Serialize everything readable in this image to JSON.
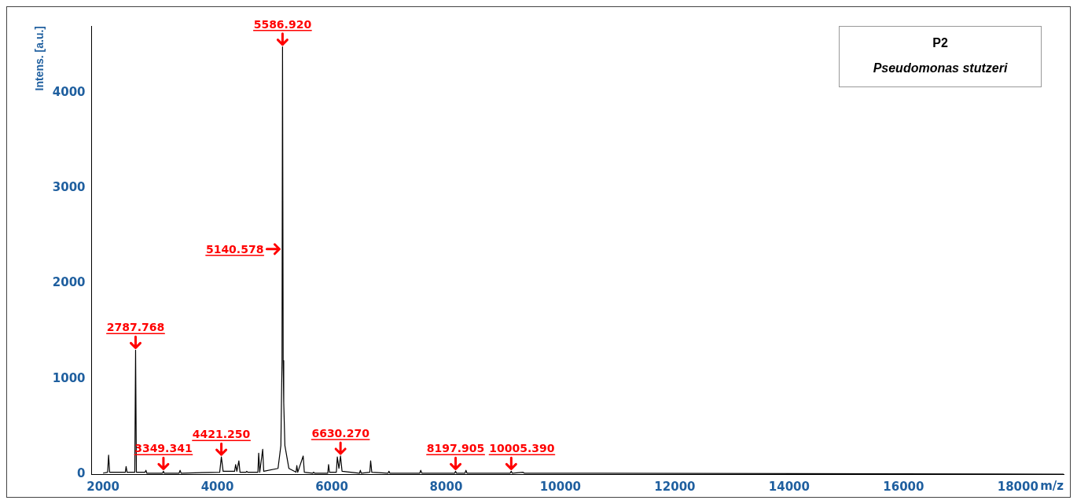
{
  "chart_data": {
    "type": "line",
    "xlabel": "m/z",
    "ylabel": "Intens. [a.u.]",
    "x": [
      2000,
      2080,
      2097,
      2115,
      2390,
      2403,
      2420,
      2555,
      2569,
      2583,
      2735,
      2750,
      2765,
      3040,
      3056,
      3070,
      3330,
      3347,
      3365,
      4040,
      4069,
      4100,
      4300,
      4319,
      4340,
      4375,
      4395,
      4500,
      4514,
      4530,
      4708,
      4722,
      4740,
      4792,
      4810,
      5060,
      5110,
      5130,
      5139,
      5150,
      5160,
      5180,
      5250,
      5375,
      5389,
      5405,
      5500,
      5520,
      5667,
      5680,
      5700,
      5930,
      5944,
      5960,
      6080,
      6097,
      6125,
      6153,
      6180,
      6486,
      6500,
      6515,
      6665,
      6680,
      6700,
      6985,
      7000,
      7015,
      7540,
      7556,
      7575,
      8150,
      8166,
      8180,
      8330,
      8347,
      8365,
      9120,
      9139,
      9155,
      9347,
      9365,
      10000,
      18800
    ],
    "series": [
      {
        "color": "#000000",
        "values": [
          10,
          20,
          200,
          20,
          20,
          80,
          20,
          20,
          1300,
          20,
          20,
          40,
          10,
          10,
          30,
          10,
          10,
          40,
          10,
          20,
          180,
          30,
          30,
          100,
          30,
          140,
          20,
          20,
          30,
          20,
          20,
          220,
          20,
          260,
          30,
          60,
          300,
          1190,
          4480,
          1190,
          750,
          300,
          60,
          20,
          90,
          20,
          190,
          20,
          10,
          20,
          10,
          10,
          100,
          20,
          20,
          180,
          60,
          190,
          30,
          10,
          40,
          10,
          20,
          140,
          20,
          10,
          30,
          10,
          10,
          40,
          10,
          10,
          30,
          10,
          10,
          40,
          10,
          10,
          30,
          10,
          20,
          10,
          10,
          0
        ]
      }
    ],
    "xlim": [
      1800,
      18800
    ],
    "ylim": [
      0,
      4700
    ],
    "xticks": [
      2000,
      4000,
      6000,
      8000,
      10000,
      12000,
      14000,
      16000,
      18000
    ],
    "yticks": [
      0,
      1000,
      2000,
      3000,
      4000
    ],
    "grid": false,
    "legend": false,
    "marker": "none",
    "line_style": "solid",
    "annotations": [
      {
        "text": "2787.768",
        "x": 2569,
        "y": 1300
      },
      {
        "text": "3349.341",
        "x": 3056,
        "y": 30
      },
      {
        "text": "4421.250",
        "x": 4069,
        "y": 180
      },
      {
        "text": "5140.578",
        "x": 5139,
        "y": 2360
      },
      {
        "text": "5586.920",
        "x": 5139,
        "y": 4480
      },
      {
        "text": "6630.270",
        "x": 6153,
        "y": 190
      },
      {
        "text": "8197.905",
        "x": 8166,
        "y": 30
      },
      {
        "text": "10005.390",
        "x": 9139,
        "y": 30
      },
      "P2",
      "Pseudomonas stutzeri"
    ]
  }
}
